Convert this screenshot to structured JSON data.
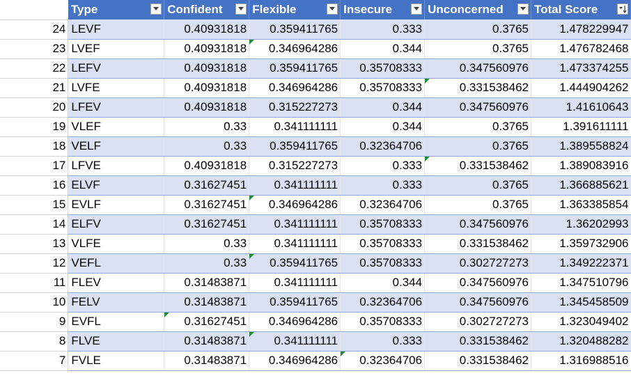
{
  "headers": {
    "type": "Type",
    "confident": "Confident",
    "flexible": "Flexible",
    "insecure": "Insecure",
    "unconcerned": "Unconcerned",
    "total": "Total Score"
  },
  "rows": [
    {
      "n": "24",
      "type": "LEVF",
      "confident": "0.40931818",
      "flexible": "0.359411765",
      "insecure": "0.333",
      "unconcerned": "0.3765",
      "total": "1.478229947"
    },
    {
      "n": "23",
      "type": "LVEF",
      "confident": "0.40931818",
      "flexible": "0.346964286",
      "insecure": "0.344",
      "unconcerned": "0.3765",
      "total": "1.476782468"
    },
    {
      "n": "22",
      "type": "LEFV",
      "confident": "0.40931818",
      "flexible": "0.359411765",
      "insecure": "0.35708333",
      "unconcerned": "0.347560976",
      "total": "1.473374255"
    },
    {
      "n": "21",
      "type": "LVFE",
      "confident": "0.40931818",
      "flexible": "0.346964286",
      "insecure": "0.35708333",
      "unconcerned": "0.331538462",
      "total": "1.444904262"
    },
    {
      "n": "20",
      "type": "LFEV",
      "confident": "0.40931818",
      "flexible": "0.315227273",
      "insecure": "0.344",
      "unconcerned": "0.347560976",
      "total": "1.41610643"
    },
    {
      "n": "19",
      "type": "VLEF",
      "confident": "0.33",
      "flexible": "0.341111111",
      "insecure": "0.344",
      "unconcerned": "0.3765",
      "total": "1.391611111"
    },
    {
      "n": "18",
      "type": "VELF",
      "confident": "0.33",
      "flexible": "0.359411765",
      "insecure": "0.32364706",
      "unconcerned": "0.3765",
      "total": "1.389558824"
    },
    {
      "n": "17",
      "type": "LFVE",
      "confident": "0.40931818",
      "flexible": "0.315227273",
      "insecure": "0.333",
      "unconcerned": "0.331538462",
      "total": "1.389083916"
    },
    {
      "n": "16",
      "type": "ELVF",
      "confident": "0.31627451",
      "flexible": "0.341111111",
      "insecure": "0.333",
      "unconcerned": "0.3765",
      "total": "1.366885621"
    },
    {
      "n": "15",
      "type": "EVLF",
      "confident": "0.31627451",
      "flexible": "0.346964286",
      "insecure": "0.32364706",
      "unconcerned": "0.3765",
      "total": "1.363385854"
    },
    {
      "n": "14",
      "type": "ELFV",
      "confident": "0.31627451",
      "flexible": "0.341111111",
      "insecure": "0.35708333",
      "unconcerned": "0.347560976",
      "total": "1.36202993"
    },
    {
      "n": "13",
      "type": "VLFE",
      "confident": "0.33",
      "flexible": "0.341111111",
      "insecure": "0.35708333",
      "unconcerned": "0.331538462",
      "total": "1.359732906"
    },
    {
      "n": "12",
      "type": "VEFL",
      "confident": "0.33",
      "flexible": "0.359411765",
      "insecure": "0.35708333",
      "unconcerned": "0.302727273",
      "total": "1.349222371"
    },
    {
      "n": "11",
      "type": "FLEV",
      "confident": "0.31483871",
      "flexible": "0.341111111",
      "insecure": "0.344",
      "unconcerned": "0.347560976",
      "total": "1.347510796"
    },
    {
      "n": "10",
      "type": "FELV",
      "confident": "0.31483871",
      "flexible": "0.359411765",
      "insecure": "0.32364706",
      "unconcerned": "0.347560976",
      "total": "1.345458509"
    },
    {
      "n": "9",
      "type": "EVFL",
      "confident": "0.31627451",
      "flexible": "0.346964286",
      "insecure": "0.35708333",
      "unconcerned": "0.302727273",
      "total": "1.323049402"
    },
    {
      "n": "8",
      "type": "FLVE",
      "confident": "0.31483871",
      "flexible": "0.341111111",
      "insecure": "0.333",
      "unconcerned": "0.331538462",
      "total": "1.320488282"
    },
    {
      "n": "7",
      "type": "FVLE",
      "confident": "0.31483871",
      "flexible": "0.346964286",
      "insecure": "0.32364706",
      "unconcerned": "0.331538462",
      "total": "1.316988516"
    }
  ],
  "colors": {
    "header_bg": "#4472c4",
    "band_bg": "#d9e1f2",
    "row_border": "#8ea9db",
    "error_triangle": "#1e8a3a"
  },
  "icons": {
    "filter": "filter-dropdown-icon",
    "sort_desc": "sort-descending-filter-icon",
    "error": "error-indicator-icon"
  }
}
